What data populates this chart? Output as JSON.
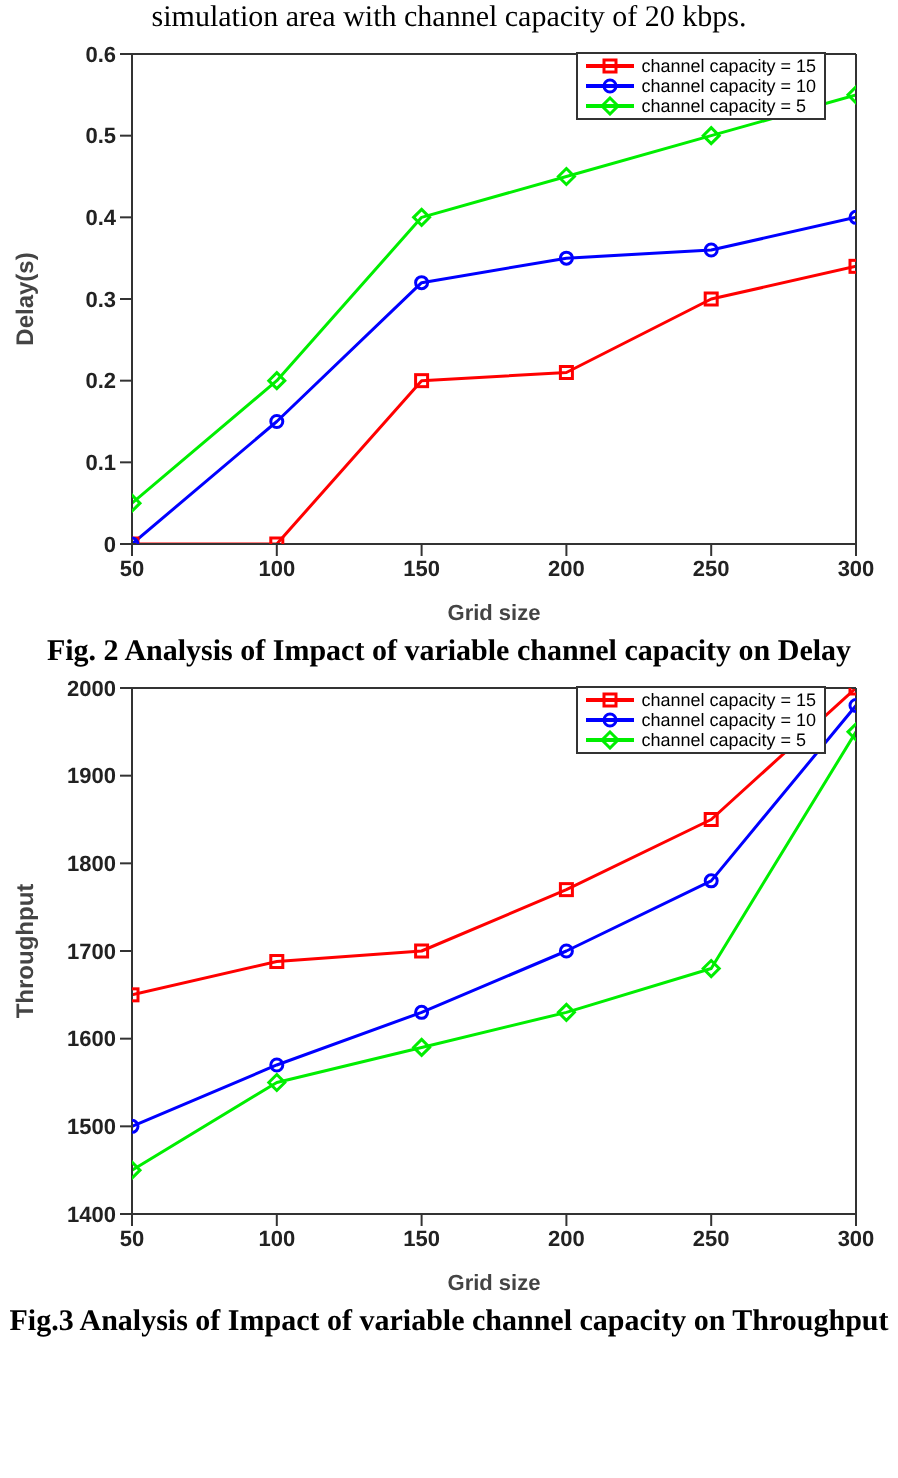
{
  "chart_data": [
    {
      "type": "line",
      "annotations": [
        "simulation area with channel capacity of 20 kbps.",
        "Fig. 2 Analysis of Impact of variable channel capacity on Delay"
      ],
      "xlabel": "Grid size",
      "ylabel": "Delay(s)",
      "x": [
        50,
        100,
        150,
        200,
        250,
        300
      ],
      "xlim": [
        50,
        300
      ],
      "xticks": [
        50,
        100,
        150,
        200,
        250,
        300
      ],
      "ylim": [
        0,
        0.6
      ],
      "yticks": [
        0,
        0.1,
        0.2,
        0.3,
        0.4,
        0.5,
        0.6
      ],
      "legend": "top right",
      "series": [
        {
          "name": "channel capacity = 15",
          "color": "#ff0000",
          "marker": "square",
          "values": [
            0,
            0,
            0.2,
            0.21,
            0.3,
            0.34
          ]
        },
        {
          "name": "channel capacity = 10",
          "color": "#0000ff",
          "marker": "circle",
          "values": [
            0,
            0.15,
            0.32,
            0.35,
            0.36,
            0.4
          ]
        },
        {
          "name": "channel capacity = 5",
          "color": "#00ee00",
          "marker": "diamond",
          "values": [
            0.05,
            0.2,
            0.4,
            0.45,
            0.5,
            0.55
          ]
        }
      ]
    },
    {
      "type": "line",
      "annotations": [
        "Fig.3 Analysis of Impact of variable channel capacity on Throughput"
      ],
      "xlabel": "Grid size",
      "ylabel": "Throughput",
      "x": [
        50,
        100,
        150,
        200,
        250,
        300
      ],
      "xlim": [
        50,
        300
      ],
      "xticks": [
        50,
        100,
        150,
        200,
        250,
        300
      ],
      "ylim": [
        1400,
        2000
      ],
      "yticks": [
        1400,
        1500,
        1600,
        1700,
        1800,
        1900,
        2000
      ],
      "legend": "top right",
      "series": [
        {
          "name": "channel capacity = 15",
          "color": "#ff0000",
          "marker": "square",
          "values": [
            1650,
            1688,
            1700,
            1770,
            1850,
            2000
          ]
        },
        {
          "name": "channel capacity = 10",
          "color": "#0000ff",
          "marker": "circle",
          "values": [
            1500,
            1570,
            1630,
            1700,
            1780,
            1980
          ]
        },
        {
          "name": "channel capacity = 5",
          "color": "#00ee00",
          "marker": "diamond",
          "values": [
            1450,
            1550,
            1590,
            1630,
            1680,
            1950
          ]
        }
      ]
    }
  ]
}
